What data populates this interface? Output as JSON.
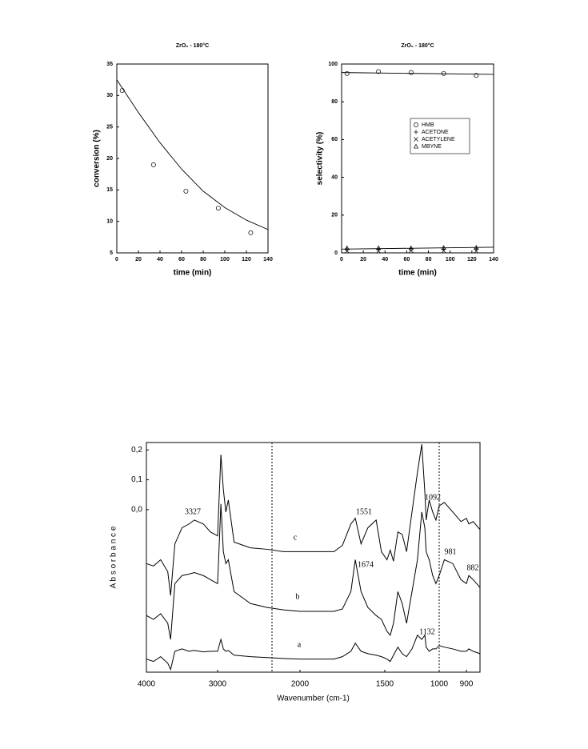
{
  "chart_data": [
    {
      "type": "scatter",
      "title": "ZrO₂ - 180°C",
      "xlabel": "time (min)",
      "ylabel": "conversion (%)",
      "xlim": [
        0,
        140
      ],
      "xticks": [
        0,
        20,
        40,
        60,
        80,
        100,
        120,
        140
      ],
      "ylim": [
        5,
        35
      ],
      "yticks": [
        5,
        10,
        15,
        20,
        25,
        30,
        35
      ],
      "series": [
        {
          "marker": "circle",
          "color": "#000000",
          "x": [
            5,
            34,
            64,
            94,
            124
          ],
          "values": [
            30.8,
            19,
            14.8,
            12.1,
            8.2
          ]
        },
        {
          "marker": "line",
          "color": "#000000",
          "x": [
            0,
            20,
            40,
            60,
            80,
            100,
            120,
            140
          ],
          "values": [
            32.5,
            27.3,
            22.5,
            18.3,
            14.8,
            12.2,
            10.2,
            8.7
          ]
        }
      ]
    },
    {
      "type": "scatter",
      "title": "ZrO₂ - 180°C",
      "xlabel": "time (min)",
      "ylabel": "selectivity (%)",
      "xlim": [
        0,
        140
      ],
      "xticks": [
        0,
        20,
        40,
        60,
        80,
        100,
        120,
        140
      ],
      "ylim": [
        0,
        100
      ],
      "yticks": [
        0,
        20,
        40,
        60,
        80,
        100
      ],
      "series": [
        {
          "name": "HMB",
          "marker": "circle",
          "color": "#000000",
          "x": [
            5,
            34,
            64,
            94,
            124
          ],
          "values": [
            95,
            96,
            95.5,
            95,
            94
          ]
        },
        {
          "name": "ACETONE",
          "marker": "plus",
          "color": "#000000",
          "x": [
            5,
            34,
            64,
            94,
            124
          ],
          "values": [
            2.2,
            2,
            2.3,
            2.1,
            2.4
          ]
        },
        {
          "name": "ACETYLENE",
          "marker": "cross",
          "color": "#000000",
          "x": [
            5,
            34,
            64,
            94,
            124
          ],
          "values": [
            1,
            1,
            1.2,
            1.1,
            1
          ]
        },
        {
          "name": "MBYNE",
          "marker": "triangle",
          "color": "#000000",
          "x": [
            5,
            34,
            64,
            94,
            124
          ],
          "values": [
            2.5,
            2.6,
            2.5,
            2.7,
            2.8
          ]
        },
        {
          "marker": "line",
          "color": "#000000",
          "x": [
            0,
            140
          ],
          "values": [
            95.5,
            94.5
          ]
        },
        {
          "marker": "line",
          "color": "#000000",
          "x": [
            0,
            140
          ],
          "values": [
            2,
            3
          ]
        }
      ]
    },
    {
      "type": "line",
      "xlabel": "Wavenumber (cm-1)",
      "ylabel": "A b s o r b a n c e",
      "xlim": [
        4000,
        800
      ],
      "xticks": [
        4000,
        3000,
        2000,
        1500,
        1000,
        900
      ],
      "ylim": [
        -0.545,
        0.225
      ],
      "yticks": [
        {
          "value": 0.0,
          "label": "0,0"
        },
        {
          "value": 0.1,
          "label": "0,1"
        },
        {
          "value": 0.2,
          "label": "0,2"
        }
      ],
      "x": [
        4000,
        3900,
        3800,
        3700,
        3660,
        3600,
        3500,
        3400,
        3327,
        3200,
        3100,
        3000,
        2960,
        2930,
        2900,
        2870,
        2800,
        2600,
        2400,
        2200,
        2000,
        1800,
        1750,
        1700,
        1674,
        1640,
        1600,
        1551,
        1520,
        1480,
        1450,
        1420,
        1380,
        1340,
        1300,
        1250,
        1200,
        1160,
        1132,
        1120,
        1092,
        1060,
        1030,
        1000,
        981,
        950,
        920,
        900,
        882,
        850,
        800
      ],
      "series": [
        {
          "color": "#000000",
          "values": [
            -0.181,
            -0.189,
            -0.168,
            -0.208,
            -0.288,
            -0.115,
            -0.061,
            -0.048,
            -0.035,
            -0.048,
            -0.075,
            -0.088,
            0.184,
            0.067,
            -0.008,
            0.032,
            -0.109,
            -0.128,
            -0.133,
            -0.141,
            -0.141,
            -0.141,
            -0.12,
            -0.048,
            -0.029,
            -0.115,
            -0.061,
            -0.035,
            -0.141,
            -0.168,
            -0.136,
            -0.173,
            -0.075,
            -0.083,
            -0.141,
            -0.008,
            0.125,
            0.219,
            0.059,
            -0.035,
            0.032,
            -0.008,
            -0.035,
            0.013,
            0.024,
            -0.008,
            -0.04,
            -0.029,
            -0.048,
            -0.04,
            -0.067
          ]
        },
        {
          "color": "#000000",
          "values": [
            -0.355,
            -0.368,
            -0.349,
            -0.381,
            -0.435,
            -0.248,
            -0.221,
            -0.216,
            -0.211,
            -0.221,
            -0.235,
            -0.248,
            0.019,
            -0.141,
            -0.181,
            -0.168,
            -0.275,
            -0.315,
            -0.328,
            -0.336,
            -0.341,
            -0.341,
            -0.333,
            -0.275,
            -0.168,
            -0.275,
            -0.328,
            -0.355,
            -0.368,
            -0.408,
            -0.421,
            -0.381,
            -0.275,
            -0.315,
            -0.381,
            -0.275,
            -0.168,
            -0.008,
            -0.061,
            -0.141,
            -0.168,
            -0.221,
            -0.248,
            -0.221,
            -0.168,
            -0.181,
            -0.235,
            -0.248,
            -0.221,
            -0.235,
            -0.261
          ]
        },
        {
          "color": "#000000",
          "values": [
            -0.501,
            -0.509,
            -0.493,
            -0.515,
            -0.536,
            -0.475,
            -0.467,
            -0.475,
            -0.472,
            -0.477,
            -0.475,
            -0.475,
            -0.435,
            -0.467,
            -0.475,
            -0.472,
            -0.488,
            -0.493,
            -0.496,
            -0.499,
            -0.501,
            -0.501,
            -0.493,
            -0.475,
            -0.448,
            -0.475,
            -0.483,
            -0.488,
            -0.493,
            -0.501,
            -0.509,
            -0.488,
            -0.461,
            -0.483,
            -0.493,
            -0.467,
            -0.421,
            -0.435,
            -0.421,
            -0.461,
            -0.475,
            -0.467,
            -0.467,
            -0.456,
            -0.461,
            -0.467,
            -0.475,
            -0.475,
            -0.467,
            -0.475,
            -0.483
          ]
        }
      ],
      "annotations": [
        {
          "text": "3327"
        },
        {
          "text": "1551"
        },
        {
          "text": "1092"
        },
        {
          "text": "1674"
        },
        {
          "text": "981"
        },
        {
          "text": "882"
        },
        {
          "text": "1132"
        },
        {
          "text": "c"
        },
        {
          "text": "b"
        },
        {
          "text": "a"
        }
      ]
    }
  ]
}
